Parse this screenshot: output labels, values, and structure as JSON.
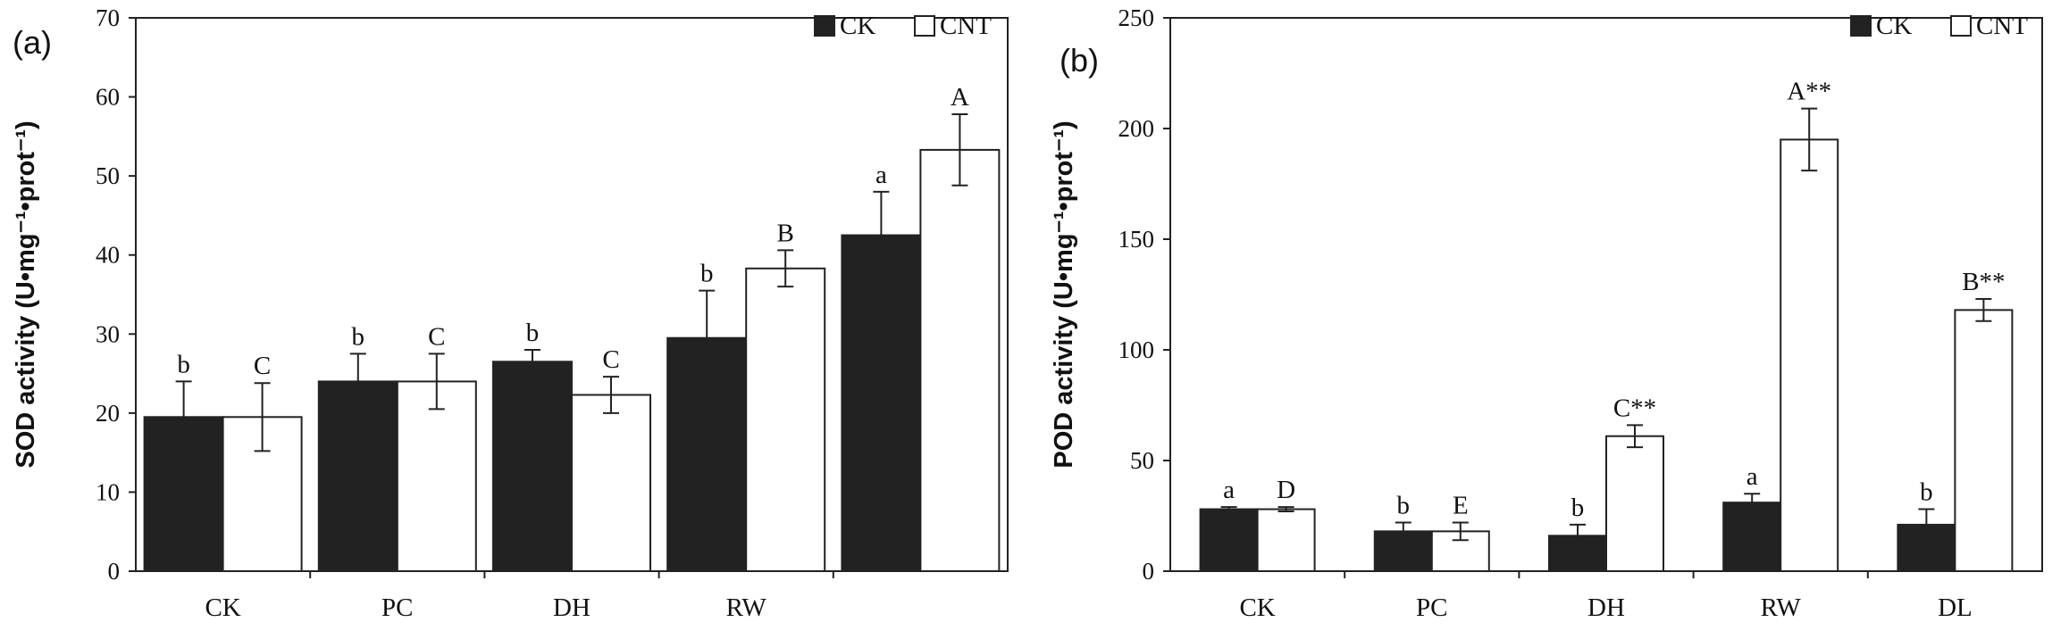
{
  "chart_data": [
    {
      "panel_label": "(a)",
      "type": "bar",
      "ylabel": "SOD activity (U•mg⁻¹•prot⁻¹)",
      "ylim": [
        0,
        70
      ],
      "yticks": [
        0,
        10,
        20,
        30,
        40,
        50,
        60,
        70
      ],
      "categories": [
        "CK",
        "PC",
        "DH",
        "RW",
        ""
      ],
      "legend": {
        "placement": "top-right",
        "entries": [
          "CK",
          "CNT"
        ]
      },
      "series": [
        {
          "name": "CK",
          "color": "#222222",
          "values": [
            19.5,
            24.0,
            26.5,
            29.5,
            42.5
          ],
          "errors": [
            4.5,
            3.5,
            1.5,
            6.0,
            5.5
          ],
          "labels": [
            "b",
            "b",
            "b",
            "b",
            "a"
          ]
        },
        {
          "name": "CNT",
          "color": "#ffffff",
          "values": [
            19.5,
            24.0,
            22.3,
            38.3,
            53.3
          ],
          "errors": [
            4.3,
            3.5,
            2.3,
            2.3,
            4.5
          ],
          "labels": [
            "C",
            "C",
            "C",
            "B",
            "A"
          ]
        }
      ]
    },
    {
      "panel_label": "(b)",
      "type": "bar",
      "ylabel": "POD activity (U•mg⁻¹•prot⁻¹)",
      "ylim": [
        0,
        250
      ],
      "yticks": [
        0,
        50,
        100,
        150,
        200,
        250
      ],
      "categories": [
        "CK",
        "PC",
        "DH",
        "RW",
        "DL"
      ],
      "legend": {
        "placement": "top-right",
        "entries": [
          "CK",
          "CNT"
        ]
      },
      "series": [
        {
          "name": "CK",
          "color": "#222222",
          "values": [
            28,
            18,
            16,
            31,
            21
          ],
          "errors": [
            1.0,
            4.0,
            5.0,
            4.0,
            7.0
          ],
          "labels": [
            "a",
            "b",
            "b",
            "a",
            "b"
          ]
        },
        {
          "name": "CNT",
          "color": "#ffffff",
          "values": [
            28,
            18,
            61,
            195,
            118
          ],
          "errors": [
            1.0,
            4.0,
            5.0,
            14.0,
            5.0
          ],
          "labels": [
            "D",
            "E",
            "C**",
            "A**",
            "B**"
          ]
        }
      ]
    }
  ]
}
